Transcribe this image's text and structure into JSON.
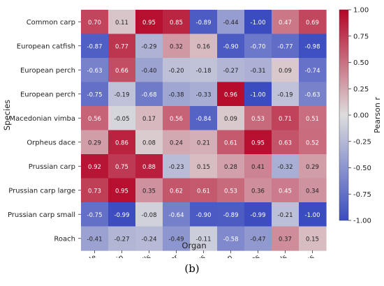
{
  "chart_data": {
    "type": "heatmap",
    "title": "",
    "xlabel": "Organ",
    "ylabel": "Species",
    "x_categories": [
      "Muscle",
      "Skin",
      "Gills",
      "Liver",
      "Kidneys",
      "Spleen",
      "Hearts",
      "Gonads",
      "Bones"
    ],
    "y_categories": [
      "Common carp",
      "European catfish",
      "European perch",
      "European perch",
      "Macedonian vimba",
      "Orpheus dace",
      "Prussian carp",
      "Prussian carp large",
      "Prussian carp small",
      "Roach"
    ],
    "values": [
      [
        "0.70",
        "0.11",
        "0.95",
        "0.85",
        "-0.89",
        "-0.44",
        "-1.00",
        "0.47",
        "0.69"
      ],
      [
        "-0.87",
        "0.77",
        "-0.29",
        "0.32",
        "0.16",
        "-0.90",
        "-0.70",
        "-0.77",
        "-0.98"
      ],
      [
        "-0.63",
        "0.66",
        "-0.40",
        "-0.20",
        "-0.18",
        "-0.27",
        "-0.31",
        "0.09",
        "-0.74"
      ],
      [
        "-0.75",
        "-0.19",
        "-0.68",
        "-0.38",
        "-0.33",
        "0.96",
        "-1.00",
        "-0.19",
        "-0.63"
      ],
      [
        "0.56",
        "-0.05",
        "0.17",
        "0.56",
        "-0.84",
        "0.09",
        "0.53",
        "0.71",
        "0.51"
      ],
      [
        "0.29",
        "0.86",
        "0.08",
        "0.24",
        "0.21",
        "0.61",
        "0.95",
        "0.63",
        "0.52"
      ],
      [
        "0.92",
        "0.75",
        "0.88",
        "-0.23",
        "0.15",
        "0.28",
        "0.41",
        "-0.32",
        "0.29"
      ],
      [
        "0.73",
        "0.95",
        "0.35",
        "0.62",
        "0.61",
        "0.53",
        "0.36",
        "0.45",
        "0.34"
      ],
      [
        "-0.75",
        "-0.99",
        "-0.08",
        "-0.64",
        "-0.90",
        "-0.89",
        "-0.99",
        "-0.21",
        "-1.00"
      ],
      [
        "-0.41",
        "-0.27",
        "-0.24",
        "-0.49",
        "-0.11",
        "-0.58",
        "-0.47",
        "0.37",
        "0.15"
      ]
    ],
    "colorbar": {
      "label": "Pearson r",
      "range": [
        -1.0,
        1.0
      ],
      "ticks": [
        "1.00",
        "0.75",
        "0.50",
        "0.25",
        "0.00",
        "-0.25",
        "-0.50",
        "-0.75",
        "-1.00"
      ],
      "colormap": [
        "#3b4cc0",
        "#dddddd",
        "#b40426"
      ]
    },
    "grid": false,
    "legend": "colorbar-right"
  },
  "caption": "(b)"
}
